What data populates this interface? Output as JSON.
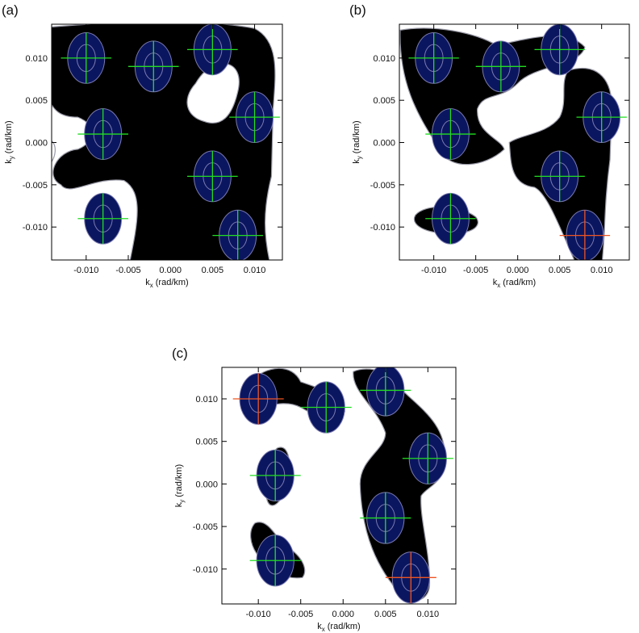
{
  "chart_data": [
    {
      "type": "scatter",
      "panel_label": "(a)",
      "xlabel": "k",
      "xlabel_sub": "x",
      "xlabel_unit": "(rad/km)",
      "ylabel": "k",
      "ylabel_sub": "y",
      "ylabel_unit": "(rad/km)",
      "x": [
        -0.01,
        -0.002,
        0.005,
        0.01,
        -0.008,
        0.005,
        -0.008,
        0.008
      ],
      "y": [
        0.01,
        0.009,
        0.011,
        0.003,
        0.001,
        -0.004,
        -0.009,
        -0.011
      ],
      "colors": [
        "#22dd22",
        "#22dd22",
        "#22dd22",
        "#22dd22",
        "#22dd22",
        "#22dd22",
        "#22dd22",
        "#22dd22"
      ],
      "xlim": [
        -0.0141,
        0.0133
      ],
      "ylim": [
        -0.0139,
        0.014
      ],
      "xticks": [
        {
          "value": -0.01,
          "label": "-0.010"
        },
        {
          "value": -0.005,
          "label": "-0.005"
        },
        {
          "value": 0,
          "label": "0.000"
        },
        {
          "value": 0.005,
          "label": "0.005"
        },
        {
          "value": 0.01,
          "label": "0.010"
        }
      ],
      "yticks": [
        {
          "value": -0.01,
          "label": "-0.010"
        },
        {
          "value": -0.005,
          "label": "-0.005"
        },
        {
          "value": 0,
          "label": "0.000"
        },
        {
          "value": 0.005,
          "label": "0.005"
        },
        {
          "value": 0.01,
          "label": "0.010"
        }
      ]
    },
    {
      "type": "scatter",
      "panel_label": "(b)",
      "xlabel": "k",
      "xlabel_sub": "x",
      "xlabel_unit": "(rad/km)",
      "ylabel": "k",
      "ylabel_sub": "y",
      "ylabel_unit": "(rad/km)",
      "x": [
        -0.01,
        -0.002,
        0.005,
        0.01,
        -0.008,
        0.005,
        -0.008,
        0.008
      ],
      "y": [
        0.01,
        0.009,
        0.011,
        0.003,
        0.001,
        -0.004,
        -0.009,
        -0.011
      ],
      "colors": [
        "#22dd22",
        "#22dd22",
        "#22dd22",
        "#22dd22",
        "#22dd22",
        "#22dd22",
        "#22dd22",
        "#ee5522"
      ],
      "xlim": [
        -0.0141,
        0.0133
      ],
      "ylim": [
        -0.0139,
        0.014
      ],
      "xticks": [
        {
          "value": -0.01,
          "label": "-0.010"
        },
        {
          "value": -0.005,
          "label": "-0.005"
        },
        {
          "value": 0,
          "label": "0.000"
        },
        {
          "value": 0.005,
          "label": "0.005"
        },
        {
          "value": 0.01,
          "label": "0.010"
        }
      ],
      "yticks": [
        {
          "value": -0.01,
          "label": "-0.010"
        },
        {
          "value": -0.005,
          "label": "-0.005"
        },
        {
          "value": 0,
          "label": "0.000"
        },
        {
          "value": 0.005,
          "label": "0.005"
        },
        {
          "value": 0.01,
          "label": "0.010"
        }
      ]
    },
    {
      "type": "scatter",
      "panel_label": "(c)",
      "xlabel": "k",
      "xlabel_sub": "x",
      "xlabel_unit": "(rad/km)",
      "ylabel": "k",
      "ylabel_sub": "y",
      "ylabel_unit": "(rad/km)",
      "x": [
        -0.01,
        -0.002,
        0.005,
        0.01,
        -0.008,
        0.005,
        -0.008,
        0.008
      ],
      "y": [
        0.01,
        0.009,
        0.011,
        0.003,
        0.001,
        -0.004,
        -0.009,
        -0.011
      ],
      "colors": [
        "#ee5522",
        "#22dd22",
        "#22dd22",
        "#22dd22",
        "#22dd22",
        "#22dd22",
        "#22dd22",
        "#ee5522"
      ],
      "xlim": [
        -0.0143,
        0.0133
      ],
      "ylim": [
        -0.0141,
        0.0137
      ],
      "xticks": [
        {
          "value": -0.01,
          "label": "-0.010"
        },
        {
          "value": -0.005,
          "label": "-0.005"
        },
        {
          "value": 0,
          "label": "0.000"
        },
        {
          "value": 0.005,
          "label": "0.005"
        },
        {
          "value": 0.01,
          "label": "0.010"
        }
      ],
      "yticks": [
        {
          "value": -0.01,
          "label": "-0.010"
        },
        {
          "value": -0.005,
          "label": "-0.005"
        },
        {
          "value": 0,
          "label": "0.000"
        },
        {
          "value": 0.005,
          "label": "0.005"
        },
        {
          "value": 0.01,
          "label": "0.010"
        }
      ]
    }
  ]
}
